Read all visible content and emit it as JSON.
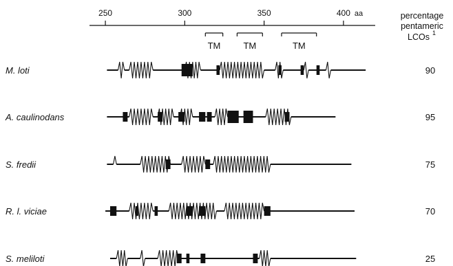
{
  "axis": {
    "ticks": [
      250,
      300,
      350,
      400
    ],
    "range": [
      240,
      420
    ],
    "unit": "aa"
  },
  "tm_label": "TM",
  "tm_regions": [
    {
      "start": 313,
      "end": 324
    },
    {
      "start": 333,
      "end": 349
    },
    {
      "start": 361,
      "end": 383
    }
  ],
  "header": {
    "line1": "percentage",
    "line2": "pentameric",
    "line3": "LCOs",
    "sup": "1"
  },
  "rows": [
    {
      "name": "M. loti",
      "percent": "90",
      "line": [
        251,
        414
      ],
      "helices": [
        [
          258,
          262
        ],
        [
          265,
          280
        ],
        [
          300,
          310
        ],
        [
          322,
          350
        ],
        [
          357,
          362
        ],
        [
          375,
          378
        ],
        [
          389,
          392
        ]
      ],
      "blocks": [
        [
          298,
          305
        ],
        [
          320,
          322
        ],
        [
          359,
          361
        ],
        [
          373,
          375
        ],
        [
          383,
          385
        ]
      ]
    },
    {
      "name": "A. caulinodans",
      "percent": "95",
      "line": [
        251,
        395
      ],
      "helices": [
        [
          265,
          280
        ],
        [
          283,
          293
        ],
        [
          297,
          305
        ],
        [
          319,
          327
        ],
        [
          351,
          367
        ]
      ],
      "blocks": [
        [
          261,
          264
        ],
        [
          283,
          286
        ],
        [
          296,
          300
        ],
        [
          309,
          313
        ],
        [
          314,
          317
        ],
        [
          327,
          334
        ],
        [
          337,
          343
        ],
        [
          363,
          366
        ]
      ]
    },
    {
      "name": "S. fredii",
      "percent": "75",
      "line": [
        251,
        405
      ],
      "helices": [
        [
          255,
          257
        ],
        [
          272,
          291
        ],
        [
          298,
          313
        ],
        [
          318,
          354
        ]
      ],
      "blocks": [
        [
          288,
          291
        ],
        [
          313,
          316
        ]
      ]
    },
    {
      "name": "R. l. viciae",
      "percent": "70",
      "line": [
        250,
        407
      ],
      "helices": [
        [
          265,
          280
        ],
        [
          290,
          320
        ],
        [
          325,
          350
        ]
      ],
      "blocks": [
        [
          253,
          257
        ],
        [
          269,
          270
        ],
        [
          281,
          283
        ],
        [
          301,
          305
        ],
        [
          309,
          313
        ],
        [
          350,
          354
        ]
      ]
    },
    {
      "name": "S. meliloti",
      "percent": "25",
      "line": [
        253,
        408
      ],
      "helices": [
        [
          257,
          264
        ],
        [
          272,
          275
        ],
        [
          283,
          296
        ],
        [
          347,
          354
        ]
      ],
      "blocks": [
        [
          295,
          298
        ],
        [
          301,
          303
        ],
        [
          310,
          313
        ],
        [
          343,
          346
        ]
      ]
    }
  ]
}
